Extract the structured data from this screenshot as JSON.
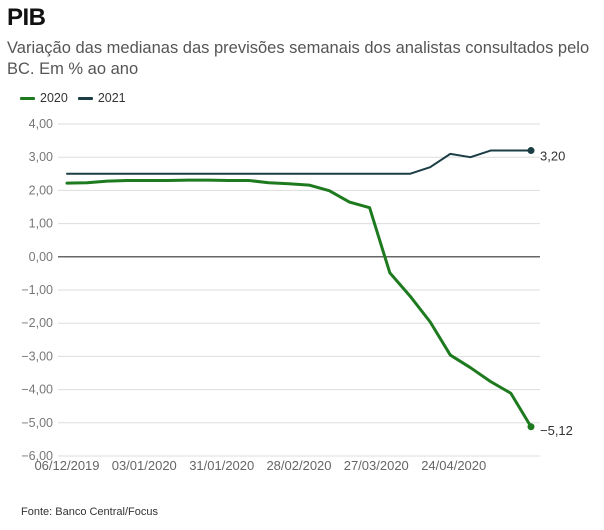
{
  "header": {
    "title": "PIB",
    "subtitle": "Variação das medianas das previsões semanais dos analistas consultados pelo BC. Em % ao ano"
  },
  "footer": {
    "source": "Fonte: Banco Central/Focus"
  },
  "chart_data": {
    "type": "line",
    "title": "PIB",
    "subtitle": "Variação das medianas das previsões semanais dos analistas consultados pelo BC. Em % ao ano",
    "xlabel": "",
    "ylabel": "",
    "x_unit": "week index since 06/12/2019",
    "x": [
      0,
      1,
      2,
      3,
      4,
      5,
      6,
      7,
      8,
      9,
      10,
      11,
      12,
      13,
      14,
      15,
      16,
      17,
      18,
      19,
      20,
      21,
      22,
      23
    ],
    "xlim": [
      0,
      23
    ],
    "ylim": [
      -6,
      4
    ],
    "y_ticks": [
      {
        "value": 4,
        "label": "4,00"
      },
      {
        "value": 3,
        "label": "3,00"
      },
      {
        "value": 2,
        "label": "2,00"
      },
      {
        "value": 1,
        "label": "1,00"
      },
      {
        "value": 0,
        "label": "0,00"
      },
      {
        "value": -1,
        "label": "−1,00"
      },
      {
        "value": -2,
        "label": "−2,00"
      },
      {
        "value": -3,
        "label": "−3,00"
      },
      {
        "value": -4,
        "label": "−4,00"
      },
      {
        "value": -5,
        "label": "−5,00"
      },
      {
        "value": -6,
        "label": "−6,00"
      }
    ],
    "x_ticks": [
      {
        "value": 0,
        "label": "06/12/2019"
      },
      {
        "value": 3.83,
        "label": "03/01/2020"
      },
      {
        "value": 7.67,
        "label": "31/01/2020"
      },
      {
        "value": 11.5,
        "label": "28/02/2020"
      },
      {
        "value": 15.33,
        "label": "27/03/2020"
      },
      {
        "value": 19.17,
        "label": "24/04/2020"
      }
    ],
    "grid": true,
    "legend_position": "top-left",
    "series": [
      {
        "name": "2020",
        "color": "#1e7a1e",
        "values": [
          2.22,
          2.23,
          2.28,
          2.3,
          2.3,
          2.3,
          2.31,
          2.31,
          2.3,
          2.3,
          2.23,
          2.2,
          2.16,
          1.99,
          1.65,
          1.48,
          -0.48,
          -1.18,
          -1.96,
          -2.96,
          -3.34,
          -3.76,
          -4.11,
          -5.12
        ],
        "end_label": "−5,12"
      },
      {
        "name": "2021",
        "color": "#1b3d44",
        "values": [
          2.5,
          2.5,
          2.5,
          2.5,
          2.5,
          2.5,
          2.5,
          2.5,
          2.5,
          2.5,
          2.5,
          2.5,
          2.5,
          2.5,
          2.5,
          2.5,
          2.5,
          2.5,
          2.7,
          3.1,
          3.0,
          3.2,
          3.2,
          3.2
        ],
        "end_label": "3,20"
      }
    ]
  }
}
